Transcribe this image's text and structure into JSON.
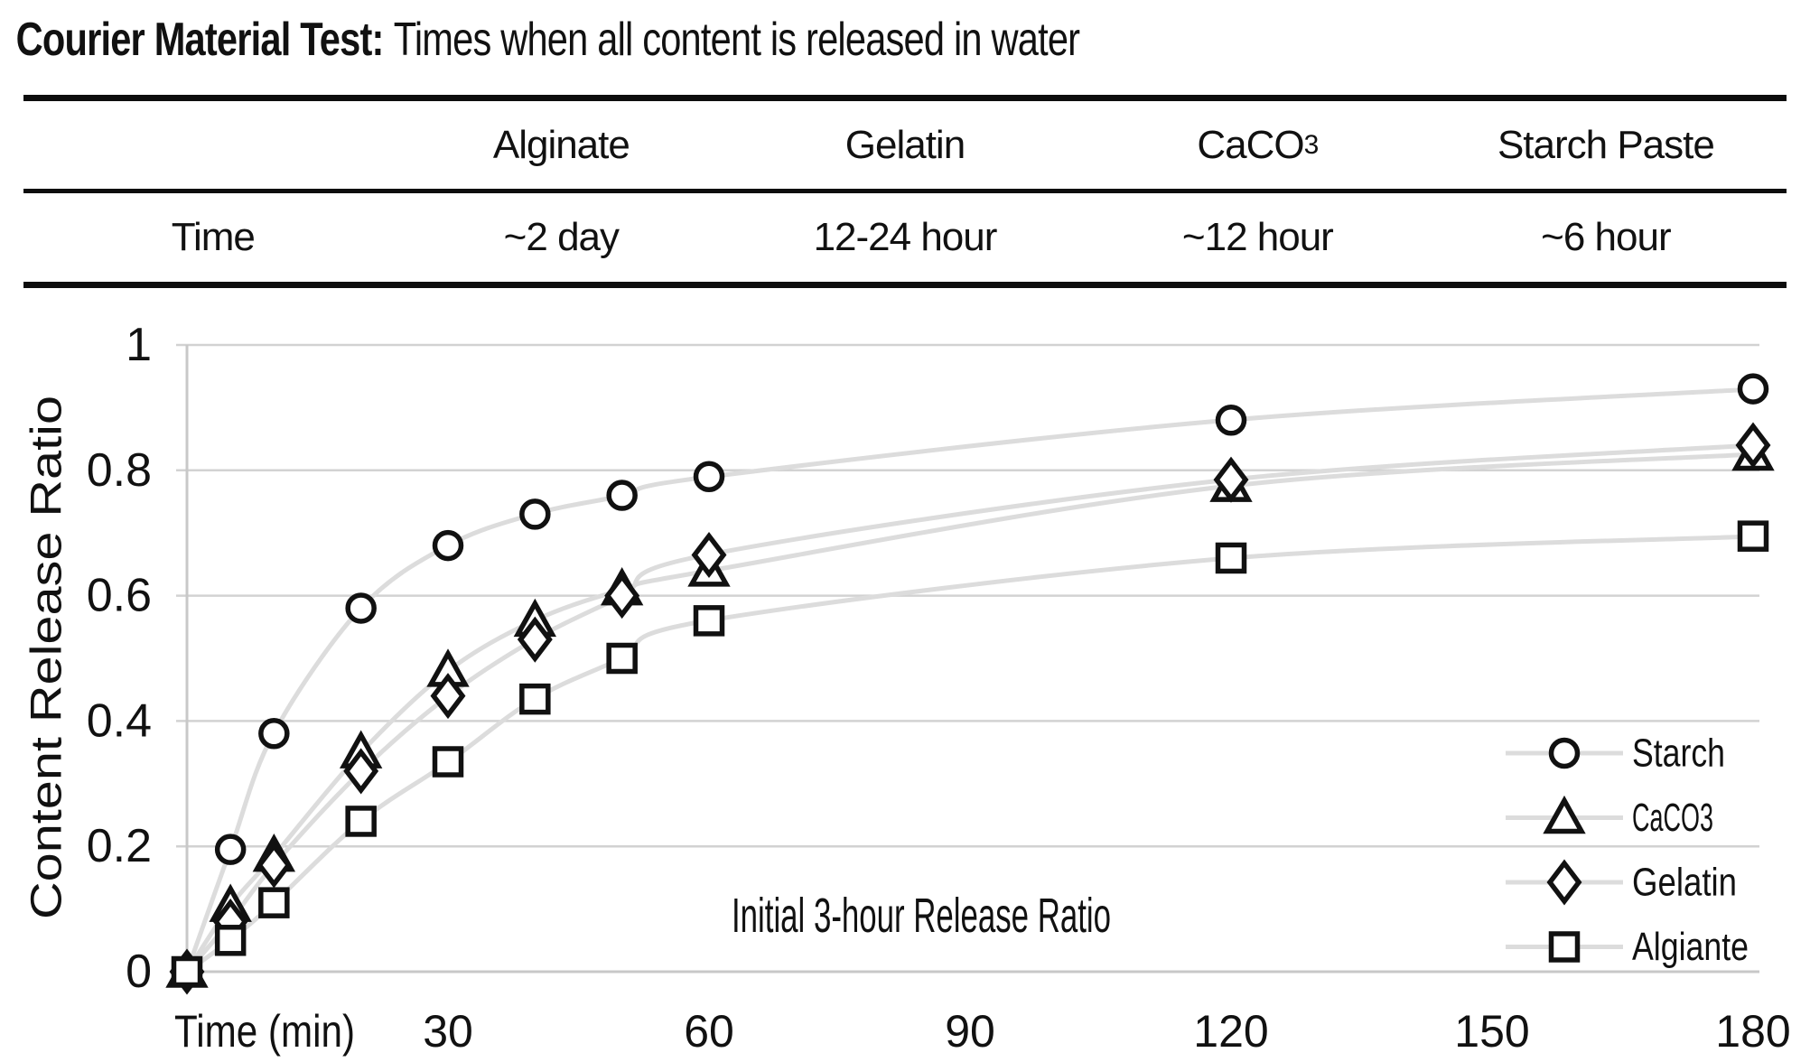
{
  "title": {
    "bold": "Courier Material Test:",
    "rest": "Times when all content is released in water"
  },
  "table": {
    "header": [
      "",
      "Alginate",
      "Gelatin",
      "CaCO",
      "Starch Paste"
    ],
    "caco3_subscript": "3",
    "row": [
      "Time",
      "~2 day",
      "12-24 hour",
      "~12 hour",
      "~6 hour"
    ]
  },
  "chart_data": {
    "type": "line",
    "annotation": "Initial 3-hour Release Ratio",
    "xlabel": "Time (min)",
    "ylabel": "Content Release Ratio",
    "x": [
      0,
      5,
      10,
      20,
      30,
      40,
      50,
      60,
      120,
      180
    ],
    "xticks": [
      30,
      60,
      90,
      120,
      150,
      180
    ],
    "yticks": [
      0,
      0.2,
      0.4,
      0.6,
      0.8,
      1
    ],
    "ytick_labels": [
      "0",
      "0.2",
      "0.4",
      "0.6",
      "0.8",
      "1"
    ],
    "xlim": [
      0,
      180
    ],
    "ylim": [
      0,
      1
    ],
    "grid": true,
    "legend_position": "inside-bottom-right",
    "series": [
      {
        "name": "Starch",
        "marker": "circle",
        "values": [
          0,
          0.195,
          0.38,
          0.58,
          0.68,
          0.73,
          0.76,
          0.79,
          0.88,
          0.93
        ]
      },
      {
        "name": "CaCO3",
        "marker": "triangle",
        "values": [
          0,
          0.105,
          0.185,
          0.35,
          0.48,
          0.56,
          0.61,
          0.64,
          0.775,
          0.825
        ]
      },
      {
        "name": "Gelatin",
        "marker": "diamond",
        "values": [
          0,
          0.08,
          0.17,
          0.32,
          0.44,
          0.53,
          0.6,
          0.665,
          0.785,
          0.84
        ]
      },
      {
        "name": "Algiante",
        "marker": "square",
        "values": [
          0,
          0.05,
          0.11,
          0.24,
          0.335,
          0.435,
          0.5,
          0.56,
          0.66,
          0.695
        ]
      }
    ],
    "colors": {
      "marker_stroke": "#111111",
      "marker_fill": "#ffffff",
      "series_line": "#dcdcdc",
      "grid": "#d2d2d2",
      "axis": "#c8c8c8",
      "text": "#111111"
    }
  }
}
